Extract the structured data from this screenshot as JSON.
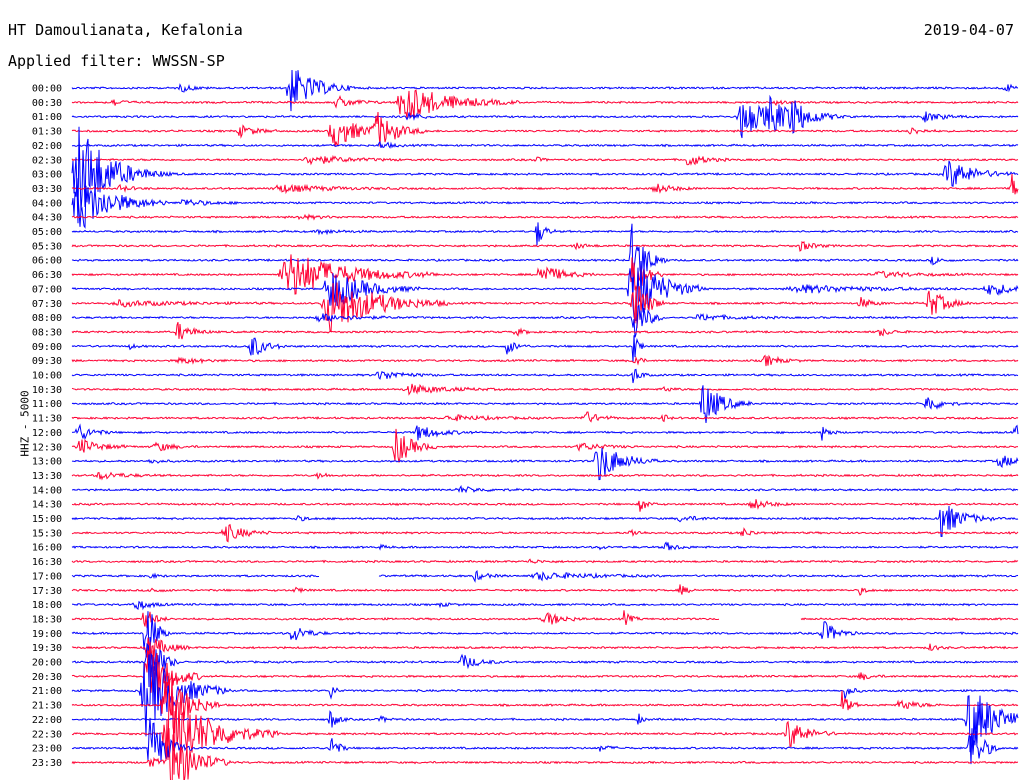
{
  "header": {
    "station": "HT Damoulianata, Kefalonia",
    "date": "2019-04-07",
    "filter": "Applied filter: WWSSN-SP"
  },
  "channel_label": "HHZ - 5000",
  "colors": {
    "blue": "#0000ff",
    "red": "#ff0033"
  },
  "rows": [
    {
      "label": "00:00",
      "color": "blue",
      "events": [
        [
          290,
          25,
          22
        ],
        [
          181,
          4,
          10
        ],
        [
          1005,
          4,
          10
        ]
      ]
    },
    {
      "label": "00:30",
      "color": "red",
      "events": [
        [
          404,
          20,
          38
        ],
        [
          112,
          5,
          8
        ],
        [
          337,
          6,
          16
        ],
        [
          775,
          3,
          8
        ]
      ]
    },
    {
      "label": "01:00",
      "color": "blue",
      "events": [
        [
          742,
          22,
          22
        ],
        [
          770,
          14,
          22
        ],
        [
          792,
          12,
          18
        ],
        [
          408,
          5,
          10
        ],
        [
          925,
          5,
          16
        ]
      ]
    },
    {
      "label": "01:30",
      "color": "red",
      "events": [
        [
          333,
          18,
          22
        ],
        [
          376,
          18,
          18
        ],
        [
          240,
          6,
          14
        ],
        [
          910,
          4,
          10
        ]
      ]
    },
    {
      "label": "02:00",
      "color": "blue",
      "events": [
        [
          380,
          4,
          10
        ]
      ]
    },
    {
      "label": "02:30",
      "color": "red",
      "events": [
        [
          310,
          5,
          30
        ],
        [
          688,
          7,
          14
        ],
        [
          535,
          3,
          6
        ]
      ]
    },
    {
      "label": "03:00",
      "color": "blue",
      "events": [
        [
          78,
          55,
          26
        ],
        [
          948,
          16,
          22
        ],
        [
          160,
          3,
          8
        ]
      ]
    },
    {
      "label": "03:30",
      "color": "red",
      "events": [
        [
          1012,
          14,
          12
        ],
        [
          280,
          4,
          40
        ],
        [
          655,
          5,
          16
        ],
        [
          120,
          3,
          10
        ]
      ]
    },
    {
      "label": "04:00",
      "color": "blue",
      "events": [
        [
          78,
          30,
          30
        ],
        [
          183,
          4,
          20
        ]
      ]
    },
    {
      "label": "04:30",
      "color": "red",
      "events": [
        [
          300,
          2,
          20
        ]
      ]
    },
    {
      "label": "05:00",
      "color": "blue",
      "events": [
        [
          537,
          16,
          6
        ],
        [
          320,
          2,
          20
        ]
      ]
    },
    {
      "label": "05:30",
      "color": "red",
      "events": [
        [
          800,
          5,
          12
        ],
        [
          575,
          3,
          10
        ]
      ]
    },
    {
      "label": "06:00",
      "color": "blue",
      "events": [
        [
          632,
          40,
          12
        ],
        [
          932,
          4,
          8
        ]
      ]
    },
    {
      "label": "06:30",
      "color": "red",
      "events": [
        [
          290,
          24,
          50
        ],
        [
          540,
          12,
          18
        ],
        [
          632,
          30,
          10
        ],
        [
          880,
          3,
          30
        ]
      ]
    },
    {
      "label": "07:00",
      "color": "blue",
      "events": [
        [
          633,
          40,
          24
        ],
        [
          330,
          22,
          30
        ],
        [
          800,
          4,
          60
        ],
        [
          990,
          6,
          30
        ]
      ]
    },
    {
      "label": "07:30",
      "color": "red",
      "events": [
        [
          330,
          30,
          40
        ],
        [
          633,
          40,
          10
        ],
        [
          929,
          16,
          14
        ],
        [
          860,
          6,
          10
        ],
        [
          120,
          3,
          50
        ]
      ]
    },
    {
      "label": "08:00",
      "color": "blue",
      "events": [
        [
          633,
          30,
          10
        ],
        [
          320,
          4,
          30
        ],
        [
          700,
          3,
          30
        ]
      ]
    },
    {
      "label": "08:30",
      "color": "red",
      "events": [
        [
          178,
          10,
          12
        ],
        [
          515,
          4,
          8
        ],
        [
          880,
          4,
          10
        ]
      ]
    },
    {
      "label": "09:00",
      "color": "blue",
      "events": [
        [
          250,
          14,
          12
        ],
        [
          507,
          8,
          8
        ],
        [
          633,
          20,
          4
        ],
        [
          128,
          3,
          6
        ]
      ]
    },
    {
      "label": "09:30",
      "color": "red",
      "events": [
        [
          765,
          6,
          12
        ],
        [
          633,
          16,
          4
        ],
        [
          180,
          3,
          20
        ]
      ]
    },
    {
      "label": "10:00",
      "color": "blue",
      "events": [
        [
          380,
          5,
          20
        ],
        [
          633,
          10,
          6
        ]
      ]
    },
    {
      "label": "10:30",
      "color": "red",
      "events": [
        [
          410,
          5,
          30
        ],
        [
          663,
          3,
          8
        ]
      ]
    },
    {
      "label": "11:00",
      "color": "blue",
      "events": [
        [
          703,
          24,
          16
        ],
        [
          926,
          10,
          12
        ]
      ]
    },
    {
      "label": "11:30",
      "color": "red",
      "events": [
        [
          583,
          8,
          12
        ],
        [
          662,
          6,
          4
        ],
        [
          450,
          3,
          30
        ]
      ]
    },
    {
      "label": "12:00",
      "color": "blue",
      "events": [
        [
          78,
          10,
          12
        ],
        [
          418,
          8,
          18
        ],
        [
          822,
          8,
          6
        ],
        [
          1015,
          8,
          6
        ]
      ]
    },
    {
      "label": "12:30",
      "color": "red",
      "events": [
        [
          396,
          20,
          14
        ],
        [
          80,
          8,
          18
        ],
        [
          156,
          5,
          14
        ],
        [
          580,
          4,
          20
        ]
      ]
    },
    {
      "label": "13:00",
      "color": "blue",
      "events": [
        [
          598,
          22,
          20
        ],
        [
          1000,
          6,
          20
        ],
        [
          150,
          3,
          8
        ]
      ]
    },
    {
      "label": "13:30",
      "color": "red",
      "events": [
        [
          100,
          4,
          20
        ],
        [
          318,
          3,
          8
        ]
      ]
    },
    {
      "label": "14:00",
      "color": "blue",
      "events": [
        [
          460,
          3,
          20
        ]
      ]
    },
    {
      "label": "14:30",
      "color": "red",
      "events": [
        [
          640,
          8,
          6
        ],
        [
          752,
          6,
          14
        ]
      ]
    },
    {
      "label": "15:00",
      "color": "blue",
      "events": [
        [
          940,
          20,
          18
        ],
        [
          295,
          3,
          10
        ],
        [
          680,
          3,
          16
        ]
      ]
    },
    {
      "label": "15:30",
      "color": "red",
      "events": [
        [
          225,
          10,
          16
        ],
        [
          630,
          4,
          8
        ],
        [
          742,
          5,
          8
        ]
      ]
    },
    {
      "label": "16:00",
      "color": "blue",
      "events": [
        [
          665,
          5,
          10
        ],
        [
          600,
          2,
          6
        ],
        [
          380,
          2,
          6
        ]
      ]
    },
    {
      "label": "16:30",
      "color": "red",
      "events": [
        [
          530,
          2,
          10
        ]
      ]
    },
    {
      "label": "17:00",
      "color": "blue",
      "events": [
        [
          475,
          5,
          10
        ],
        [
          540,
          4,
          40
        ],
        [
          150,
          2,
          8
        ]
      ]
    },
    {
      "label": "17:30",
      "color": "red",
      "events": [
        [
          680,
          6,
          6
        ],
        [
          295,
          3,
          6
        ],
        [
          150,
          3,
          8
        ],
        [
          860,
          4,
          6
        ]
      ]
    },
    {
      "label": "18:00",
      "color": "blue",
      "events": [
        [
          135,
          6,
          12
        ],
        [
          440,
          2,
          8
        ]
      ]
    },
    {
      "label": "18:30",
      "color": "red",
      "events": [
        [
          545,
          8,
          14
        ],
        [
          624,
          8,
          6
        ],
        [
          144,
          14,
          8
        ]
      ]
    },
    {
      "label": "19:00",
      "color": "blue",
      "events": [
        [
          145,
          45,
          8
        ],
        [
          292,
          10,
          12
        ],
        [
          822,
          14,
          12
        ]
      ]
    },
    {
      "label": "19:30",
      "color": "red",
      "events": [
        [
          148,
          16,
          14
        ],
        [
          930,
          4,
          6
        ]
      ]
    },
    {
      "label": "20:00",
      "color": "blue",
      "events": [
        [
          462,
          8,
          14
        ],
        [
          148,
          40,
          10
        ]
      ]
    },
    {
      "label": "20:30",
      "color": "red",
      "events": [
        [
          148,
          40,
          18
        ],
        [
          860,
          4,
          10
        ]
      ]
    },
    {
      "label": "21:00",
      "color": "blue",
      "events": [
        [
          146,
          45,
          28
        ],
        [
          330,
          10,
          4
        ],
        [
          845,
          8,
          6
        ]
      ]
    },
    {
      "label": "21:30",
      "color": "red",
      "events": [
        [
          165,
          45,
          18
        ],
        [
          842,
          14,
          6
        ],
        [
          900,
          6,
          14
        ]
      ]
    },
    {
      "label": "22:00",
      "color": "blue",
      "events": [
        [
          970,
          40,
          22
        ],
        [
          330,
          12,
          6
        ],
        [
          638,
          6,
          4
        ],
        [
          380,
          3,
          8
        ]
      ]
    },
    {
      "label": "22:30",
      "color": "red",
      "events": [
        [
          170,
          45,
          36
        ],
        [
          788,
          16,
          16
        ]
      ]
    },
    {
      "label": "23:00",
      "color": "blue",
      "events": [
        [
          150,
          35,
          14
        ],
        [
          330,
          18,
          6
        ],
        [
          970,
          34,
          10
        ],
        [
          600,
          3,
          10
        ]
      ]
    },
    {
      "label": "23:30",
      "color": "red",
      "events": [
        [
          170,
          40,
          20
        ],
        [
          150,
          4,
          20
        ]
      ]
    }
  ],
  "gaps": [
    {
      "row": 34,
      "from": 320,
      "to": 378
    },
    {
      "row": 37,
      "from": 720,
      "to": 800
    }
  ]
}
